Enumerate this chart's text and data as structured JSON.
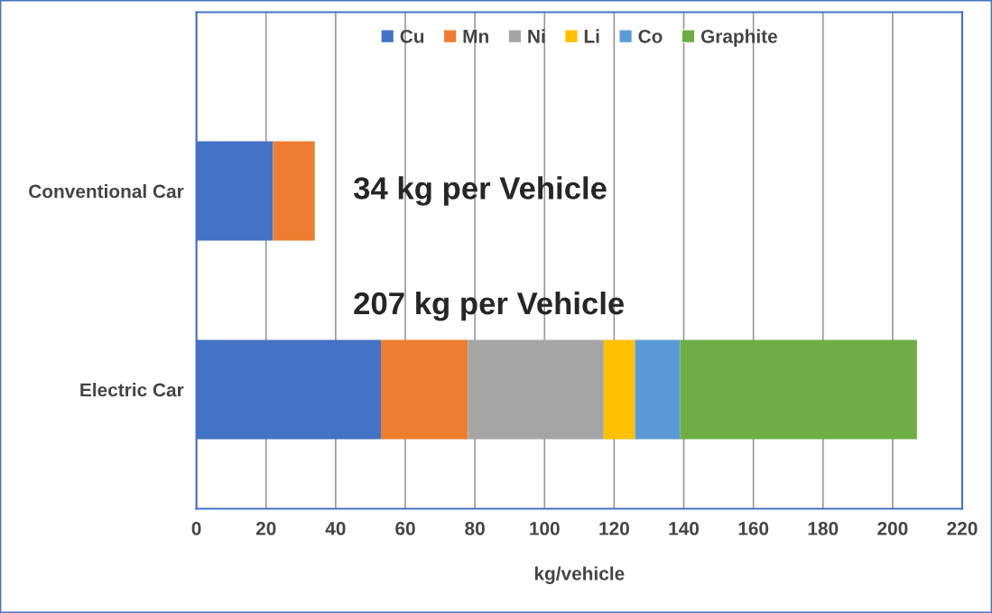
{
  "chart_data": {
    "type": "bar",
    "orientation": "horizontal",
    "stacked": true,
    "categories": [
      "Conventional Car",
      "Electric Car"
    ],
    "series": [
      {
        "name": "Cu",
        "color": "#4472c4",
        "values": [
          22,
          53
        ]
      },
      {
        "name": "Mn",
        "color": "#ed7d31",
        "values": [
          12,
          25
        ]
      },
      {
        "name": "Ni",
        "color": "#a5a5a5",
        "values": [
          null,
          39
        ]
      },
      {
        "name": "Li",
        "color": "#ffc000",
        "values": [
          null,
          9
        ]
      },
      {
        "name": "Co",
        "color": "#5b9bd5",
        "values": [
          null,
          13
        ]
      },
      {
        "name": "Graphite",
        "color": "#70ad47",
        "values": [
          null,
          68
        ]
      }
    ],
    "xlim": [
      0,
      220
    ],
    "xticks": [
      0,
      20,
      40,
      60,
      80,
      100,
      120,
      140,
      160,
      180,
      200,
      220
    ],
    "xlabel": "kg/vehicle",
    "grid": "x",
    "legend": "top",
    "annotations": [
      "34 kg per Vehicle",
      "207 kg per Vehicle"
    ]
  }
}
